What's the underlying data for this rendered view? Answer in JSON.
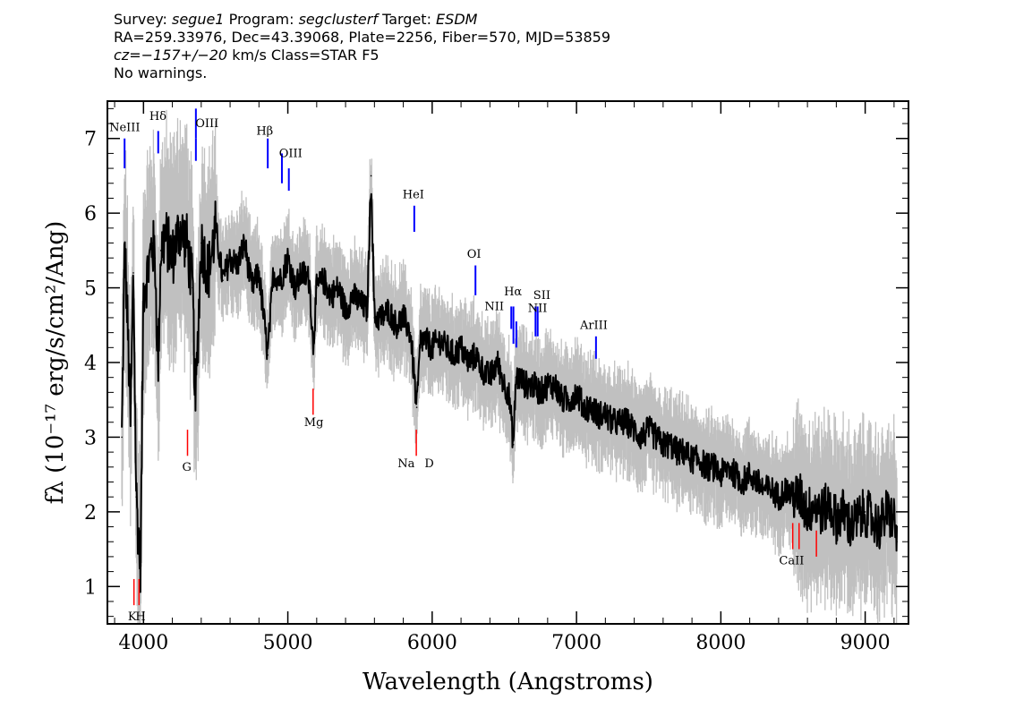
{
  "header": {
    "survey_label": "Survey:",
    "survey": "segue1",
    "program_label": "Program:",
    "program": "segclusterf",
    "target_label": "Target:",
    "target": "ESDM",
    "line2": "RA=259.33976, Dec=43.39068, Plate=2256, Fiber=570, MJD=53859",
    "cz": "cz=−157+/−20",
    "cz_unit": "km/s",
    "class_text": "Class=STAR F5",
    "line4": "No warnings."
  },
  "chart_data": {
    "type": "line",
    "xlabel": "Wavelength (Angstroms)",
    "ylabel": "fλ (10⁻¹⁷ erg/s/cm²/Ang)",
    "xlim": [
      3750,
      9300
    ],
    "ylim": [
      0.5,
      7.5
    ],
    "x_ticks": [
      4000,
      5000,
      6000,
      7000,
      8000,
      9000
    ],
    "y_ticks": [
      1,
      2,
      3,
      4,
      5,
      6,
      7
    ],
    "grid": false,
    "colors": {
      "flux": "#000000",
      "error": "#c0c0c0",
      "emission": "#0000ff",
      "absorption": "#ff0000"
    },
    "series": [
      {
        "role": "flux",
        "x": [
          3850,
          3870,
          3890,
          3910,
          3930,
          3950,
          3965,
          3980,
          4000,
          4030,
          4060,
          4080,
          4101,
          4120,
          4150,
          4200,
          4250,
          4300,
          4340,
          4360,
          4400,
          4450,
          4500,
          4550,
          4600,
          4650,
          4700,
          4750,
          4800,
          4861,
          4900,
          4950,
          5000,
          5050,
          5100,
          5150,
          5175,
          5200,
          5250,
          5300,
          5350,
          5400,
          5450,
          5500,
          5550,
          5577,
          5600,
          5650,
          5700,
          5750,
          5800,
          5850,
          5893,
          5920,
          5950,
          6000,
          6050,
          6100,
          6150,
          6200,
          6250,
          6300,
          6350,
          6400,
          6450,
          6500,
          6530,
          6563,
          6580,
          6600,
          6650,
          6700,
          6750,
          6800,
          6850,
          6900,
          6950,
          7000,
          7050,
          7100,
          7150,
          7200,
          7250,
          7300,
          7350,
          7400,
          7450,
          7500,
          7550,
          7600,
          7650,
          7700,
          7750,
          7800,
          7850,
          7900,
          7950,
          8000,
          8050,
          8100,
          8150,
          8200,
          8250,
          8300,
          8350,
          8400,
          8450,
          8500,
          8550,
          8600,
          8650,
          8700,
          8750,
          8800,
          8850,
          8900,
          8950,
          9000,
          9050,
          9100,
          9150,
          9200,
          9220
        ],
        "y": [
          3.0,
          5.6,
          4.5,
          3.2,
          5.2,
          2.2,
          1.7,
          1.3,
          5.0,
          5.2,
          5.6,
          5.4,
          3.9,
          5.5,
          5.7,
          5.4,
          5.8,
          5.6,
          5.0,
          3.4,
          5.6,
          5.2,
          5.8,
          5.1,
          5.4,
          5.3,
          5.6,
          5.0,
          5.2,
          4.1,
          5.2,
          5.1,
          5.4,
          5.0,
          5.2,
          5.1,
          4.2,
          5.0,
          5.1,
          4.9,
          5.0,
          4.7,
          4.9,
          4.8,
          4.7,
          6.5,
          4.6,
          4.6,
          4.7,
          4.5,
          4.6,
          4.4,
          3.4,
          4.3,
          4.3,
          4.2,
          4.3,
          4.2,
          4.1,
          4.2,
          4.0,
          4.1,
          3.9,
          3.8,
          4.0,
          3.7,
          3.6,
          2.9,
          3.8,
          3.8,
          3.7,
          3.7,
          3.6,
          3.7,
          3.7,
          3.5,
          3.5,
          3.6,
          3.4,
          3.4,
          3.3,
          3.3,
          3.2,
          3.2,
          3.2,
          3.1,
          3.0,
          3.1,
          3.0,
          2.9,
          2.9,
          2.8,
          2.8,
          2.7,
          2.7,
          2.6,
          2.6,
          2.5,
          2.6,
          2.5,
          2.4,
          2.5,
          2.4,
          2.3,
          2.3,
          2.2,
          2.3,
          2.2,
          2.2,
          2.0,
          2.1,
          2.0,
          2.1,
          1.9,
          2.0,
          1.8,
          1.9,
          2.0,
          1.9,
          1.8,
          2.0,
          1.9,
          1.6
        ]
      }
    ],
    "emission_lines": [
      {
        "label": "NeIII",
        "wavelength": 3869,
        "flux_top": 7.0,
        "flux_bottom": 6.6
      },
      {
        "label": "Hδ",
        "wavelength": 4102,
        "flux_top": 7.1,
        "flux_bottom": 6.8
      },
      {
        "label": "OIII",
        "wavelength": 4363,
        "flux_top": 7.4,
        "flux_bottom": 7.0
      },
      {
        "label": "OIII",
        "wavelength": 4363,
        "flux_top": 7.0,
        "flux_bottom": 6.7
      },
      {
        "label": "Hβ",
        "wavelength": 4861,
        "flux_top": 7.0,
        "flux_bottom": 6.6
      },
      {
        "label": "OIII",
        "wavelength": 4959,
        "flux_top": 6.8,
        "flux_bottom": 6.4
      },
      {
        "label": "OIII",
        "wavelength": 5007,
        "flux_top": 6.6,
        "flux_bottom": 6.3
      },
      {
        "label": "HeI",
        "wavelength": 5876,
        "flux_top": 6.1,
        "flux_bottom": 5.75
      },
      {
        "label": "OI",
        "wavelength": 6300,
        "flux_top": 5.3,
        "flux_bottom": 4.9
      },
      {
        "label": "NII",
        "wavelength": 6548,
        "flux_top": 4.75,
        "flux_bottom": 4.45
      },
      {
        "label": "Hα",
        "wavelength": 6563,
        "flux_top": 4.75,
        "flux_bottom": 4.25
      },
      {
        "label": "NII",
        "wavelength": 6583,
        "flux_top": 4.55,
        "flux_bottom": 4.2
      },
      {
        "label": "SII",
        "wavelength": 6716,
        "flux_top": 4.75,
        "flux_bottom": 4.35
      },
      {
        "label": "SII",
        "wavelength": 6731,
        "flux_top": 4.75,
        "flux_bottom": 4.35
      },
      {
        "label": "ArIII",
        "wavelength": 7135,
        "flux_top": 4.35,
        "flux_bottom": 4.05
      }
    ],
    "absorption_lines": [
      {
        "label": "K",
        "wavelength": 3934,
        "flux_top": 1.1,
        "flux_bottom": 0.75
      },
      {
        "label": "H",
        "wavelength": 3969,
        "flux_top": 1.1,
        "flux_bottom": 0.75
      },
      {
        "label": "G",
        "wavelength": 4305,
        "flux_top": 3.1,
        "flux_bottom": 2.75
      },
      {
        "label": "Mg",
        "wavelength": 5175,
        "flux_top": 3.65,
        "flux_bottom": 3.3
      },
      {
        "label": "Na",
        "wavelength": 5890,
        "flux_top": 3.1,
        "flux_bottom": 2.75
      },
      {
        "label": "CaII",
        "wavelength": 8498,
        "flux_top": 1.85,
        "flux_bottom": 1.5
      },
      {
        "label": "CaII",
        "wavelength": 8542,
        "flux_top": 1.85,
        "flux_bottom": 1.5
      },
      {
        "label": "CaII",
        "wavelength": 8662,
        "flux_top": 1.75,
        "flux_bottom": 1.4
      }
    ],
    "text_labels": [
      {
        "text": "NeIII",
        "wavelength": 3870,
        "flux": 7.1,
        "align": "middle"
      },
      {
        "text": "Hδ",
        "wavelength": 4100,
        "flux": 7.25,
        "align": "middle"
      },
      {
        "text": "OIII",
        "wavelength": 4440,
        "flux": 7.15,
        "align": "middle"
      },
      {
        "text": "Hβ",
        "wavelength": 4840,
        "flux": 7.05,
        "align": "middle"
      },
      {
        "text": "OIII",
        "wavelength": 5020,
        "flux": 6.75,
        "align": "middle"
      },
      {
        "text": "HeI",
        "wavelength": 5870,
        "flux": 6.2,
        "align": "middle"
      },
      {
        "text": "OI",
        "wavelength": 6290,
        "flux": 5.4,
        "align": "middle"
      },
      {
        "text": "NII",
        "wavelength": 6430,
        "flux": 4.7,
        "align": "middle"
      },
      {
        "text": "Hα",
        "wavelength": 6560,
        "flux": 4.9,
        "align": "middle"
      },
      {
        "text": "SII",
        "wavelength": 6760,
        "flux": 4.85,
        "align": "middle"
      },
      {
        "text": "NII",
        "wavelength": 6730,
        "flux": 4.68,
        "align": "middle"
      },
      {
        "text": "ArIII",
        "wavelength": 7120,
        "flux": 4.45,
        "align": "middle"
      },
      {
        "text": "Mg",
        "wavelength": 5180,
        "flux": 3.15,
        "align": "middle"
      },
      {
        "text": "G",
        "wavelength": 4300,
        "flux": 2.55,
        "align": "middle"
      },
      {
        "text": "Na",
        "wavelength": 5820,
        "flux": 2.6,
        "align": "middle"
      },
      {
        "text": "D",
        "wavelength": 5980,
        "flux": 2.6,
        "align": "middle"
      },
      {
        "text": "CaII",
        "wavelength": 8490,
        "flux": 1.3,
        "align": "middle"
      },
      {
        "text": "K",
        "wavelength": 3922,
        "flux": 0.55,
        "align": "middle"
      },
      {
        "text": "H",
        "wavelength": 3980,
        "flux": 0.55,
        "align": "middle"
      }
    ]
  }
}
